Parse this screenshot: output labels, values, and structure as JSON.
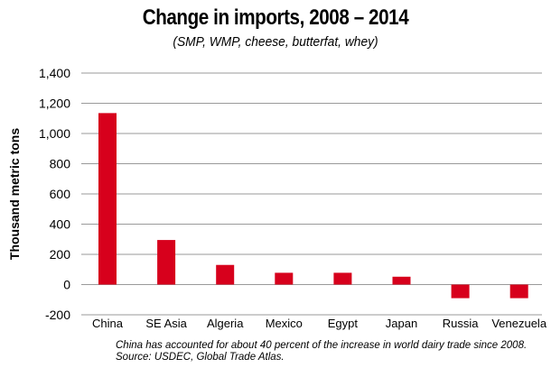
{
  "chart_data": {
    "type": "bar",
    "title": "Change in imports, 2008 – 2014",
    "subtitle": "(SMP, WMP, cheese, butterfat, whey)",
    "xlabel": "",
    "ylabel": "Thousand metric tons",
    "categories": [
      "China",
      "SE Asia",
      "Algeria",
      "Mexico",
      "Egypt",
      "Japan",
      "Russia",
      "Venezuela"
    ],
    "values": [
      1135,
      295,
      130,
      78,
      78,
      52,
      -90,
      -90
    ],
    "ylim": [
      -200,
      1400
    ],
    "yticks": [
      -200,
      0,
      200,
      400,
      600,
      800,
      1000,
      1200,
      1400
    ],
    "ytick_labels": [
      "-200",
      "0",
      "200",
      "400",
      "600",
      "800",
      "1,000",
      "1,200",
      "1,400"
    ],
    "grid": true,
    "bar_color": "#d7001c",
    "grid_color": "#9a9a9a",
    "notes": [
      "China has accounted for about 40 percent of the increase in world dairy trade since 2008.",
      "Source: USDEC, Global Trade Atlas."
    ]
  }
}
